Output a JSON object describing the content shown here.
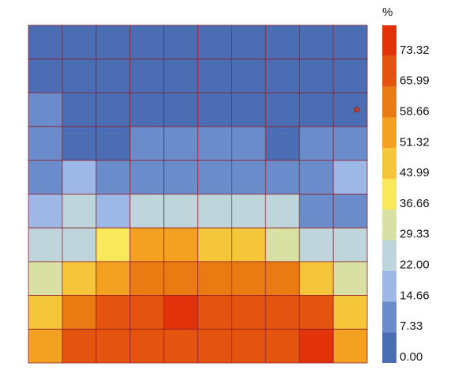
{
  "chart_data": {
    "type": "heatmap",
    "unit_label": "%",
    "rows": 10,
    "cols": 10,
    "values": [
      [
        5,
        4,
        4,
        3,
        3,
        4,
        3,
        3,
        4,
        3
      ],
      [
        5,
        4,
        4,
        3,
        3,
        4,
        4,
        4,
        4,
        3
      ],
      [
        8,
        5,
        6,
        4,
        4,
        5,
        5,
        4,
        7,
        6
      ],
      [
        8,
        6,
        7,
        10,
        8,
        10,
        9,
        7,
        8,
        8
      ],
      [
        12,
        16,
        10,
        13,
        11,
        13,
        12,
        10,
        12,
        15
      ],
      [
        17,
        25,
        16,
        22,
        28,
        24,
        22,
        24,
        12,
        13
      ],
      [
        25,
        25,
        40,
        57,
        52,
        49,
        45,
        35,
        28,
        22
      ],
      [
        32,
        47,
        57,
        64,
        64,
        64,
        64,
        60,
        45,
        30
      ],
      [
        48,
        64,
        71,
        71,
        75,
        71,
        72,
        71,
        68,
        48
      ],
      [
        58,
        70,
        70,
        72,
        72,
        72,
        73,
        72,
        76,
        55
      ]
    ],
    "markers": [
      {
        "row": 2,
        "col": 9,
        "shape": "dot",
        "color": "#c0392b"
      }
    ],
    "colorbar": {
      "bins": [
        {
          "from": 0.0,
          "color": "#4a6db3"
        },
        {
          "from": 7.33,
          "color": "#6b8cca"
        },
        {
          "from": 14.66,
          "color": "#9db7e6"
        },
        {
          "from": 22.0,
          "color": "#bed5dc"
        },
        {
          "from": 29.33,
          "color": "#d8e0a3"
        },
        {
          "from": 36.66,
          "color": "#f8e85a"
        },
        {
          "from": 43.99,
          "color": "#f6c63a"
        },
        {
          "from": 51.32,
          "color": "#f4a021"
        },
        {
          "from": 58.66,
          "color": "#ea7a12"
        },
        {
          "from": 65.99,
          "color": "#e5540f"
        },
        {
          "from": 73.32,
          "color": "#e2320a"
        }
      ],
      "tick_labels": [
        "0.00",
        "7.33",
        "14.66",
        "22.00",
        "29.33",
        "36.66",
        "43.99",
        "51.32",
        "58.66",
        "65.99",
        "73.32"
      ]
    },
    "cell_border_color": "#8b1e2e"
  }
}
